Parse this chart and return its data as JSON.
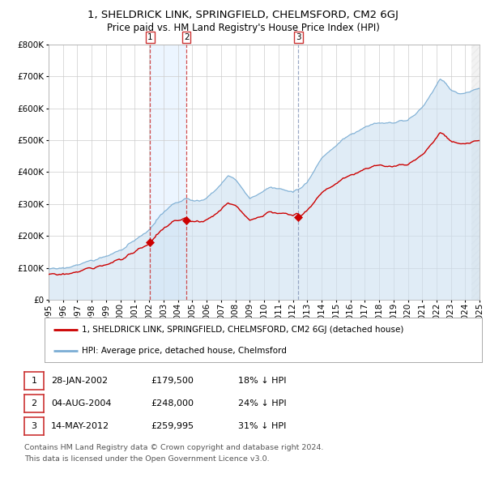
{
  "title": "1, SHELDRICK LINK, SPRINGFIELD, CHELMSFORD, CM2 6GJ",
  "subtitle": "Price paid vs. HM Land Registry's House Price Index (HPI)",
  "legend_property": "1, SHELDRICK LINK, SPRINGFIELD, CHELMSFORD, CM2 6GJ (detached house)",
  "legend_hpi": "HPI: Average price, detached house, Chelmsford",
  "transactions": [
    {
      "num": 1,
      "date": "28-JAN-2002",
      "price_str": "£179,500",
      "pct": "18% ↓ HPI"
    },
    {
      "num": 2,
      "date": "04-AUG-2004",
      "price_str": "£248,000",
      "pct": "24% ↓ HPI"
    },
    {
      "num": 3,
      "date": "14-MAY-2012",
      "price_str": "£259,995",
      "pct": "31% ↓ HPI"
    }
  ],
  "t1": 2002.074,
  "t2": 2004.587,
  "t3": 2012.369,
  "p1": 179500,
  "p2": 248000,
  "p3": 259995,
  "xmin": 1995,
  "xmax": 2025,
  "ymin": 0,
  "ymax": 800000,
  "yticks": [
    0,
    100000,
    200000,
    300000,
    400000,
    500000,
    600000,
    700000,
    800000
  ],
  "property_color": "#cc0000",
  "hpi_color": "#7aadd4",
  "hpi_fill_color": "#cce0f0",
  "vline_red": "#cc3333",
  "vline_blue": "#8899bb",
  "shade_color": "#ddeeff",
  "bg_color": "#ffffff",
  "grid_color": "#cccccc",
  "footnote_line1": "Contains HM Land Registry data © Crown copyright and database right 2024.",
  "footnote_line2": "This data is licensed under the Open Government Licence v3.0."
}
